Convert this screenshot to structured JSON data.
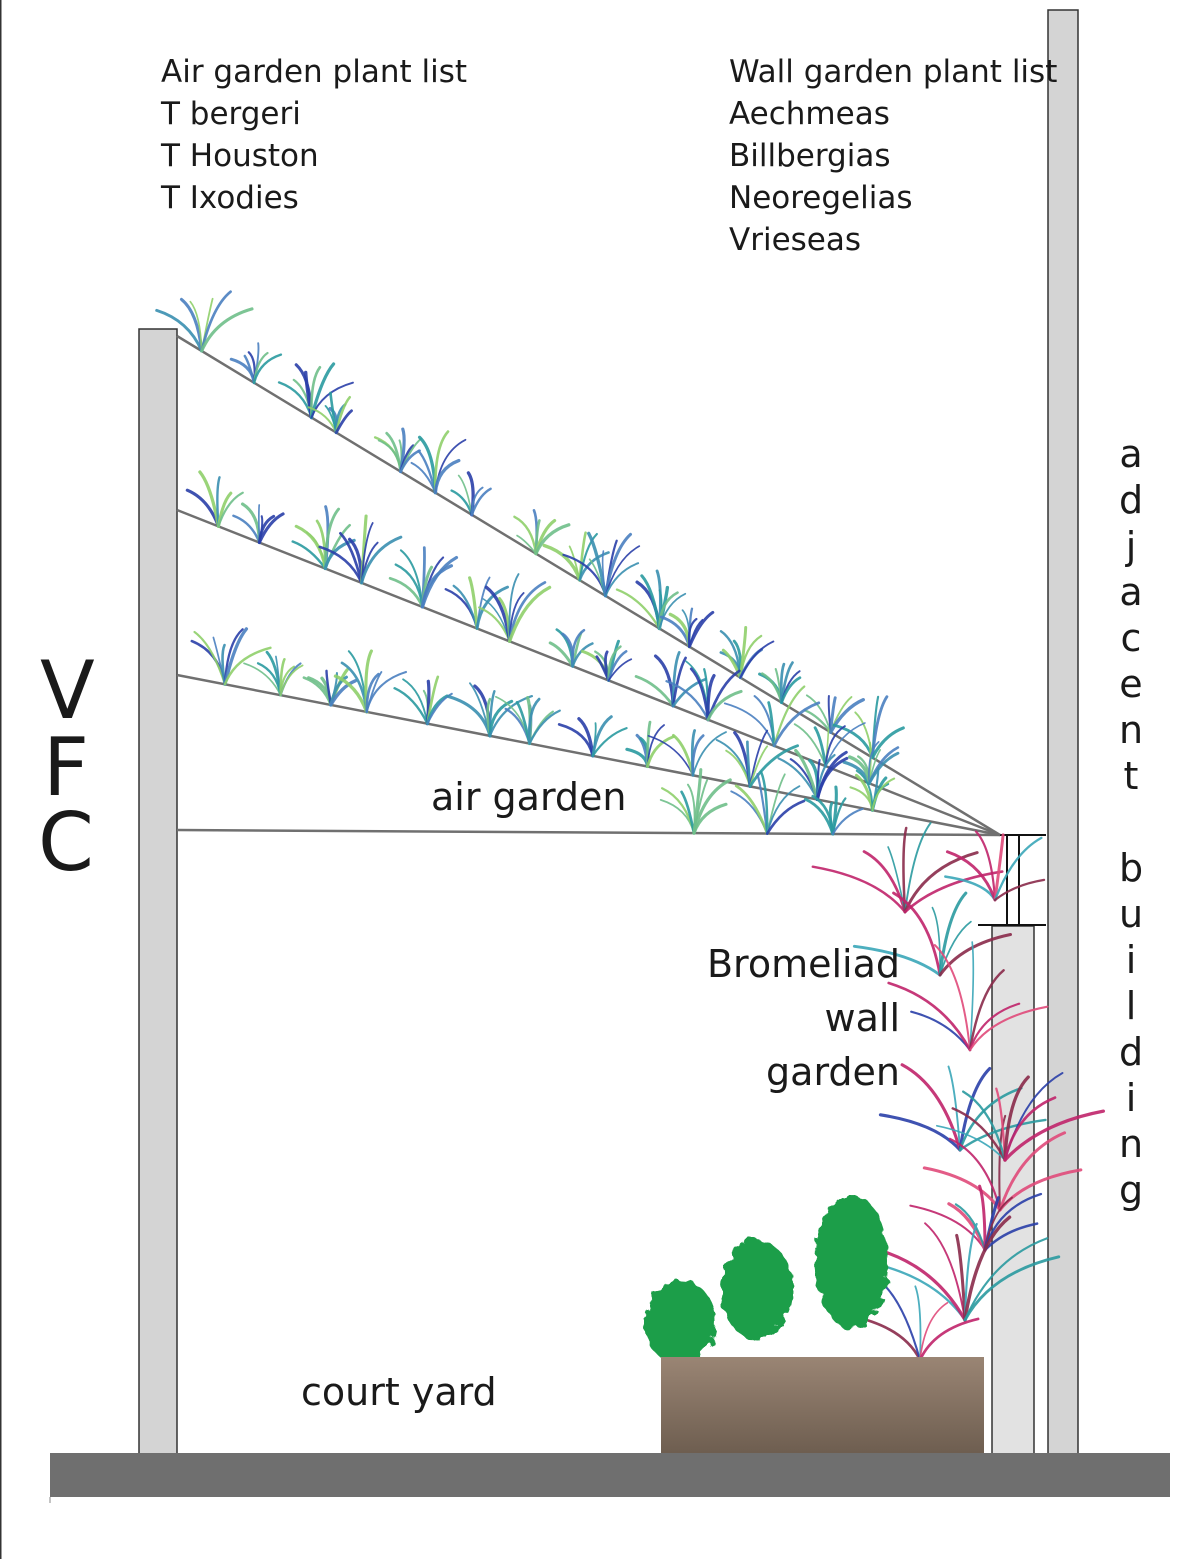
{
  "air_list": {
    "heading": "Air garden plant list",
    "items": [
      "T bergeri",
      "T Houston",
      "T Ixodies"
    ]
  },
  "wall_list": {
    "heading": "Wall garden plant list",
    "items": [
      "Aechmeas",
      "Billbergias",
      "Neoregelias",
      "Vrieseas"
    ]
  },
  "labels": {
    "vfc": [
      "V",
      "F",
      "C"
    ],
    "air_garden": "air garden",
    "bromeliad": [
      "Bromeliad",
      "wall",
      "garden"
    ],
    "court_yard": "court yard",
    "adjacent_building": [
      "a",
      "d",
      "j",
      "a",
      "c",
      "e",
      "n",
      "t",
      "",
      "b",
      "u",
      "i",
      "l",
      "d",
      "i",
      "n",
      "g"
    ]
  },
  "colors": {
    "wall_fill": "#d4d4d4",
    "ground": "#6f6f6f",
    "cable": "#707070",
    "planter_top": "#9a8574",
    "planter_bottom": "#6e5e50",
    "shrub": "#1f9e4a",
    "air_plant_palette": [
      "#2a3fa8",
      "#3a8fb0",
      "#6fbf8a",
      "#4a7fc0",
      "#8fcf6a",
      "#2a9aa0"
    ],
    "bromeliad_palette": [
      "#c0246a",
      "#2a3fa8",
      "#3aa6b8",
      "#8a2a4a",
      "#e04a7a",
      "#2a9aa0"
    ]
  }
}
